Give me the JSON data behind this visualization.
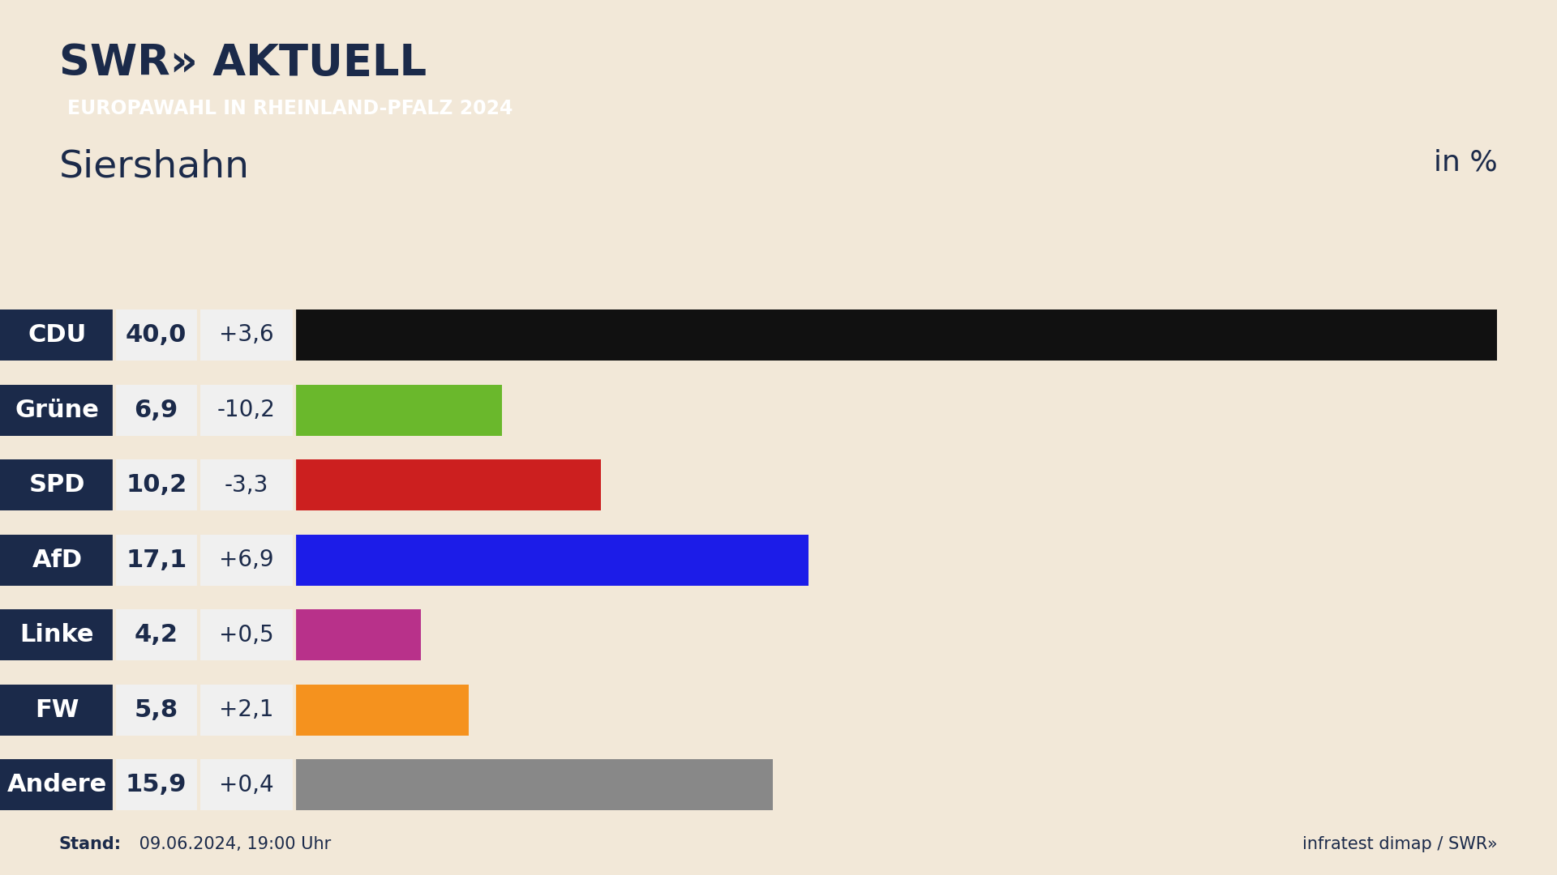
{
  "title": "Siershahn",
  "subtitle": "EUROPAWAHL IN RHEINLAND-PFALZ 2024",
  "in_percent_label": "in %",
  "parties": [
    "CDU",
    "Grüne",
    "SPD",
    "AfD",
    "Linke",
    "FW",
    "Andere"
  ],
  "values": [
    40.0,
    6.9,
    10.2,
    17.1,
    4.2,
    5.8,
    15.9
  ],
  "changes": [
    "+3,6",
    "-10,2",
    "-3,3",
    "+6,9",
    "+0,5",
    "+2,1",
    "+0,4"
  ],
  "bar_colors": [
    "#111111",
    "#6ab82c",
    "#cc1f1f",
    "#1c1ce8",
    "#b8318a",
    "#f5921e",
    "#888888"
  ],
  "label_bg_color": "#1b2a4a",
  "value_bg_color": "#f0f0f0",
  "background_color": "#f2e8d8",
  "xlim_max": 42,
  "stand_text": "Stand: 09.06.2024, 19:00 Uhr",
  "footer_right": "infratest dimap / SWR»",
  "subtitle_bg_color": "#e8432a",
  "subtitle_text_color": "#ffffff",
  "title_color": "#1b2a4a",
  "label_text_color": "#ffffff",
  "stand_bold": "Stand:",
  "stand_normal": " 09.06.2024, 19:00 Uhr"
}
